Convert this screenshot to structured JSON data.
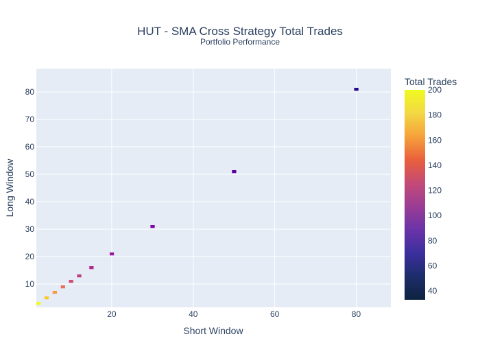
{
  "chart_data": {
    "type": "heatmap",
    "title": "HUT - SMA Cross Strategy Total Trades",
    "subtitle": "Portfolio Performance",
    "xlabel": "Short Window",
    "ylabel": "Long Window",
    "colorbar_title": "Total Trades",
    "x_range": [
      1.5,
      88.5
    ],
    "y_range": [
      1.5,
      88.5
    ],
    "x_ticks": [
      20,
      40,
      60,
      80
    ],
    "y_ticks": [
      10,
      20,
      30,
      40,
      50,
      60,
      70,
      80
    ],
    "color_range": [
      33,
      200
    ],
    "colorbar_ticks": [
      40,
      60,
      80,
      100,
      120,
      140,
      160,
      180,
      200
    ],
    "grid": true,
    "colorscale": [
      "#0d0887",
      "#46039f",
      "#7201a8",
      "#9c179e",
      "#bd3786",
      "#d8576b",
      "#ed7953",
      "#fb9f3a",
      "#fdca26",
      "#f0f921"
    ],
    "colorbar_colorscale": [
      "#0d2340",
      "#1d2d6b",
      "#3c2f9e",
      "#6a33a8",
      "#9a3d95",
      "#c44a77",
      "#e9603c",
      "#f6a13b",
      "#f3d844",
      "#f0f921"
    ],
    "diagonal_cells": [
      {
        "short": 2,
        "long": 3,
        "trades": 200
      },
      {
        "short": 4,
        "long": 5,
        "trades": 180
      },
      {
        "short": 6,
        "long": 7,
        "trades": 160
      },
      {
        "short": 8,
        "long": 9,
        "trades": 140
      },
      {
        "short": 10,
        "long": 11,
        "trades": 120
      },
      {
        "short": 12,
        "long": 13,
        "trades": 110
      },
      {
        "short": 15,
        "long": 16,
        "trades": 100
      },
      {
        "short": 20,
        "long": 21,
        "trades": 90
      },
      {
        "short": 30,
        "long": 31,
        "trades": 75
      },
      {
        "short": 50,
        "long": 51,
        "trades": 60
      },
      {
        "short": 80,
        "long": 81,
        "trades": 40
      }
    ]
  }
}
